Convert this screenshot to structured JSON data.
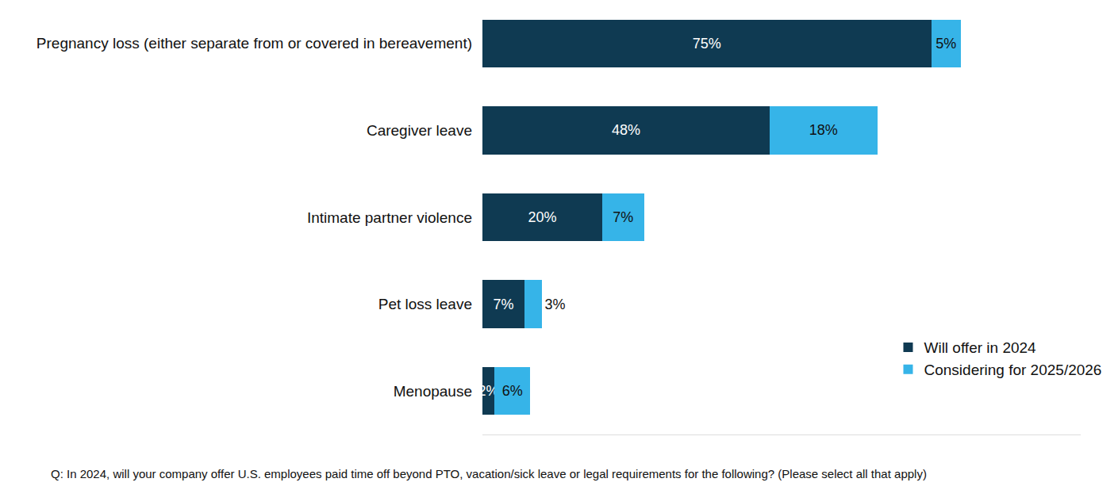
{
  "chart_data": {
    "type": "bar",
    "orientation": "horizontal",
    "stacked": true,
    "data_labels": true,
    "tick_labels": "y",
    "grid": false,
    "legend": "bottom right",
    "categories": [
      "Pregnancy loss (either separate from or covered in bereavement)",
      "Caregiver leave",
      "Intimate partner violence",
      "Pet loss leave",
      "Menopause"
    ],
    "series": [
      {
        "name": "Will offer in 2024",
        "color": "#0f3a52",
        "values": [
          75,
          48,
          20,
          7,
          2
        ],
        "value_labels": [
          "75%",
          "48%",
          "20%",
          "7%",
          "2%"
        ]
      },
      {
        "name": "Considering for 2025/2026",
        "color": "#36b4e8",
        "values": [
          5,
          18,
          7,
          3,
          6
        ],
        "value_labels": [
          "5%",
          "18%",
          "7%",
          "3%",
          "6%"
        ]
      }
    ],
    "xlim": [
      0,
      100
    ],
    "xticks": [],
    "annotations": [
      "Q: In 2024, will your company offer U.S. employees paid time off beyond PTO, vacation/sick leave or legal requirements for the following? (Please select all that apply)"
    ]
  }
}
